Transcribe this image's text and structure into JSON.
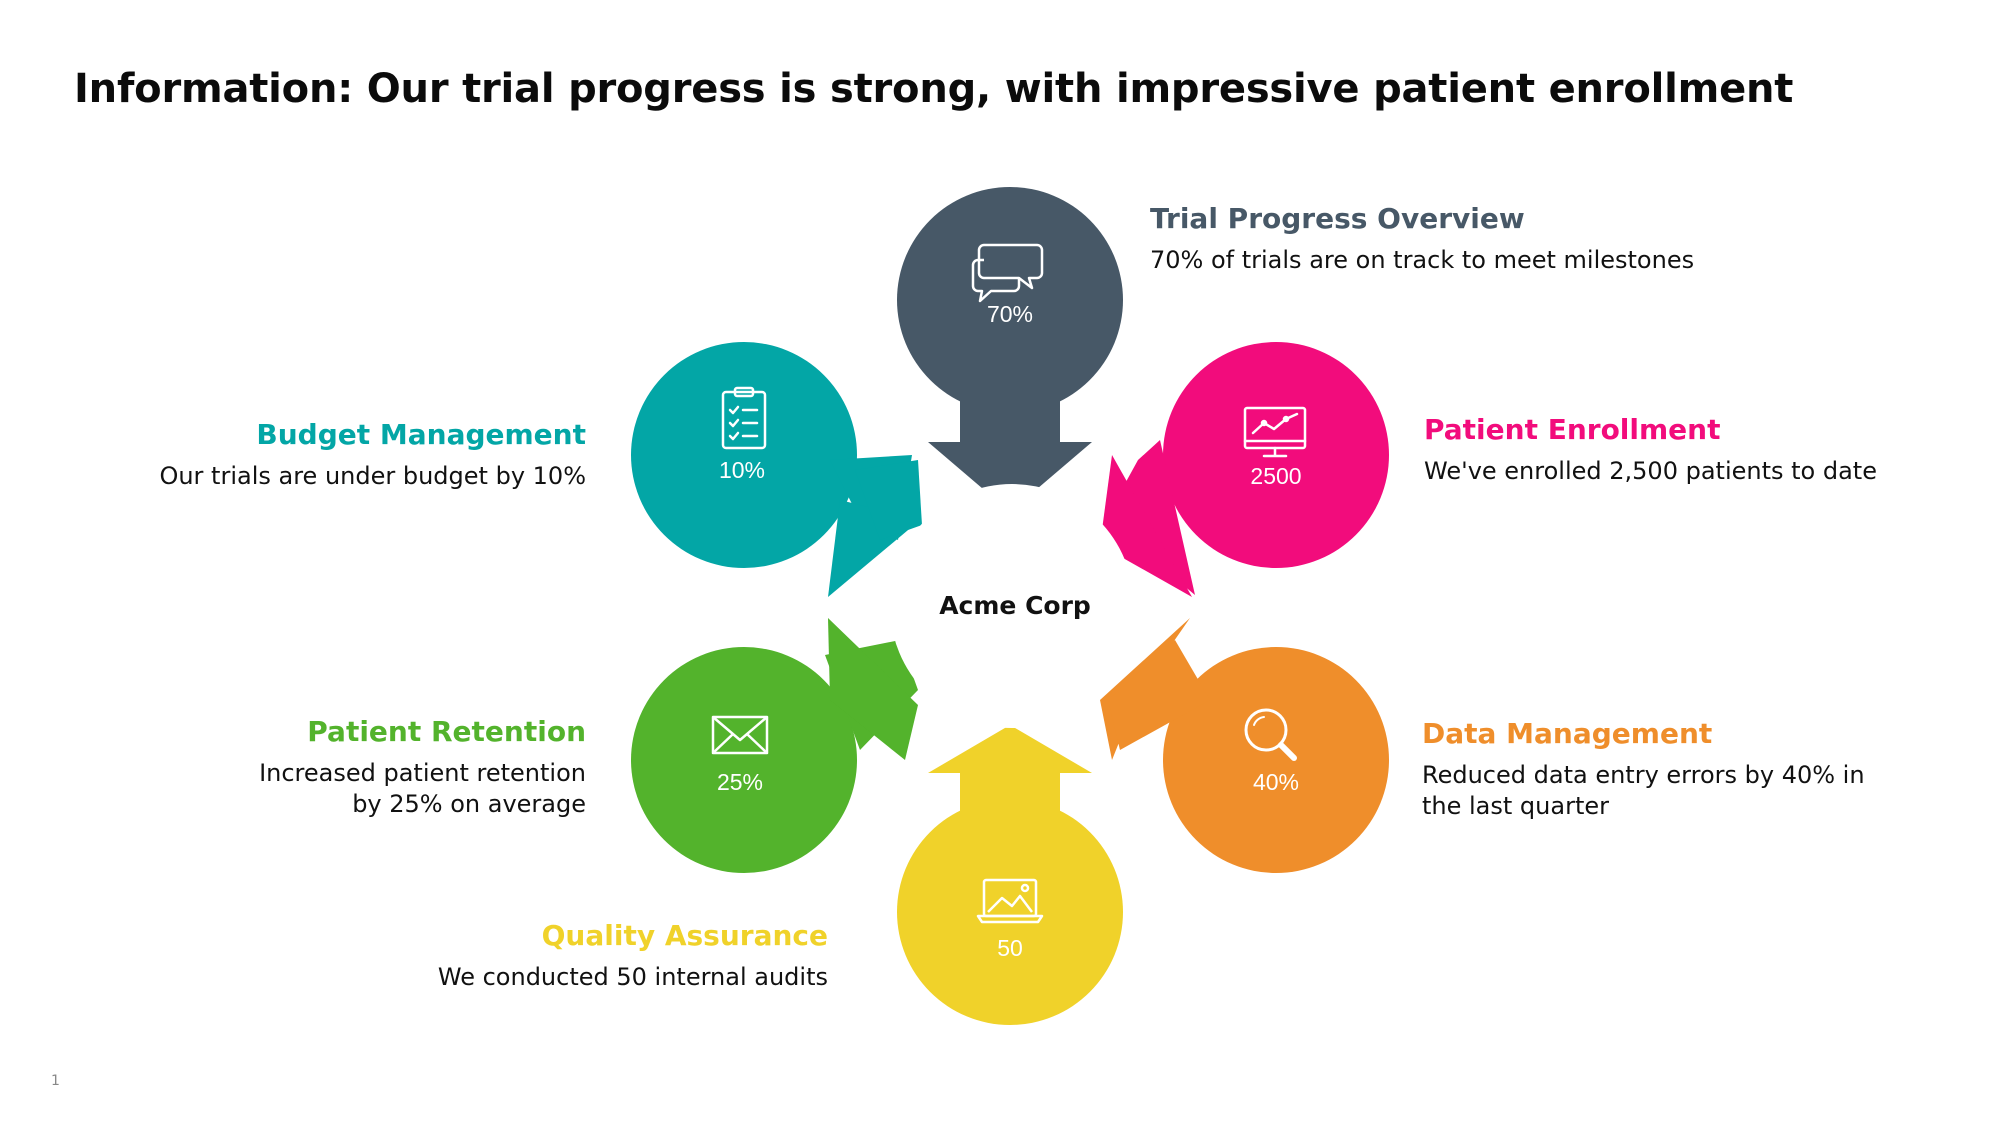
{
  "title": "Information: Our trial progress is strong, with impressive patient enrollment",
  "center_label": "Acme Corp",
  "page_number": "1",
  "nodes": [
    {
      "id": "trial",
      "heading": "Trial Progress Overview",
      "value": "70%",
      "description": "70% of trials are on track to meet milestones",
      "color": "#475867",
      "icon": "chat-bubbles-icon"
    },
    {
      "id": "enroll",
      "heading": "Patient Enrollment",
      "value": "2500",
      "description": "We've enrolled 2,500 patients to date",
      "color": "#f20c7c",
      "icon": "monitor-chart-icon"
    },
    {
      "id": "data",
      "heading": "Data Management",
      "value": "40%",
      "description": "Reduced data entry errors by 40% in the last quarter",
      "color": "#ef8e2b",
      "icon": "magnifier-icon"
    },
    {
      "id": "quality",
      "heading": "Quality Assurance",
      "value": "50",
      "description": "We conducted 50 internal audits",
      "color": "#f0d22a",
      "icon": "laptop-image-icon"
    },
    {
      "id": "retention",
      "heading": "Patient Retention",
      "value": "25%",
      "description": "Increased patient retention by 25% on average",
      "color": "#53b32c",
      "icon": "envelope-icon"
    },
    {
      "id": "budget",
      "heading": "Budget Management",
      "value": "10%",
      "description": "Our trials are under budget by 10%",
      "color": "#03a6a6",
      "icon": "clipboard-checklist-icon"
    }
  ]
}
